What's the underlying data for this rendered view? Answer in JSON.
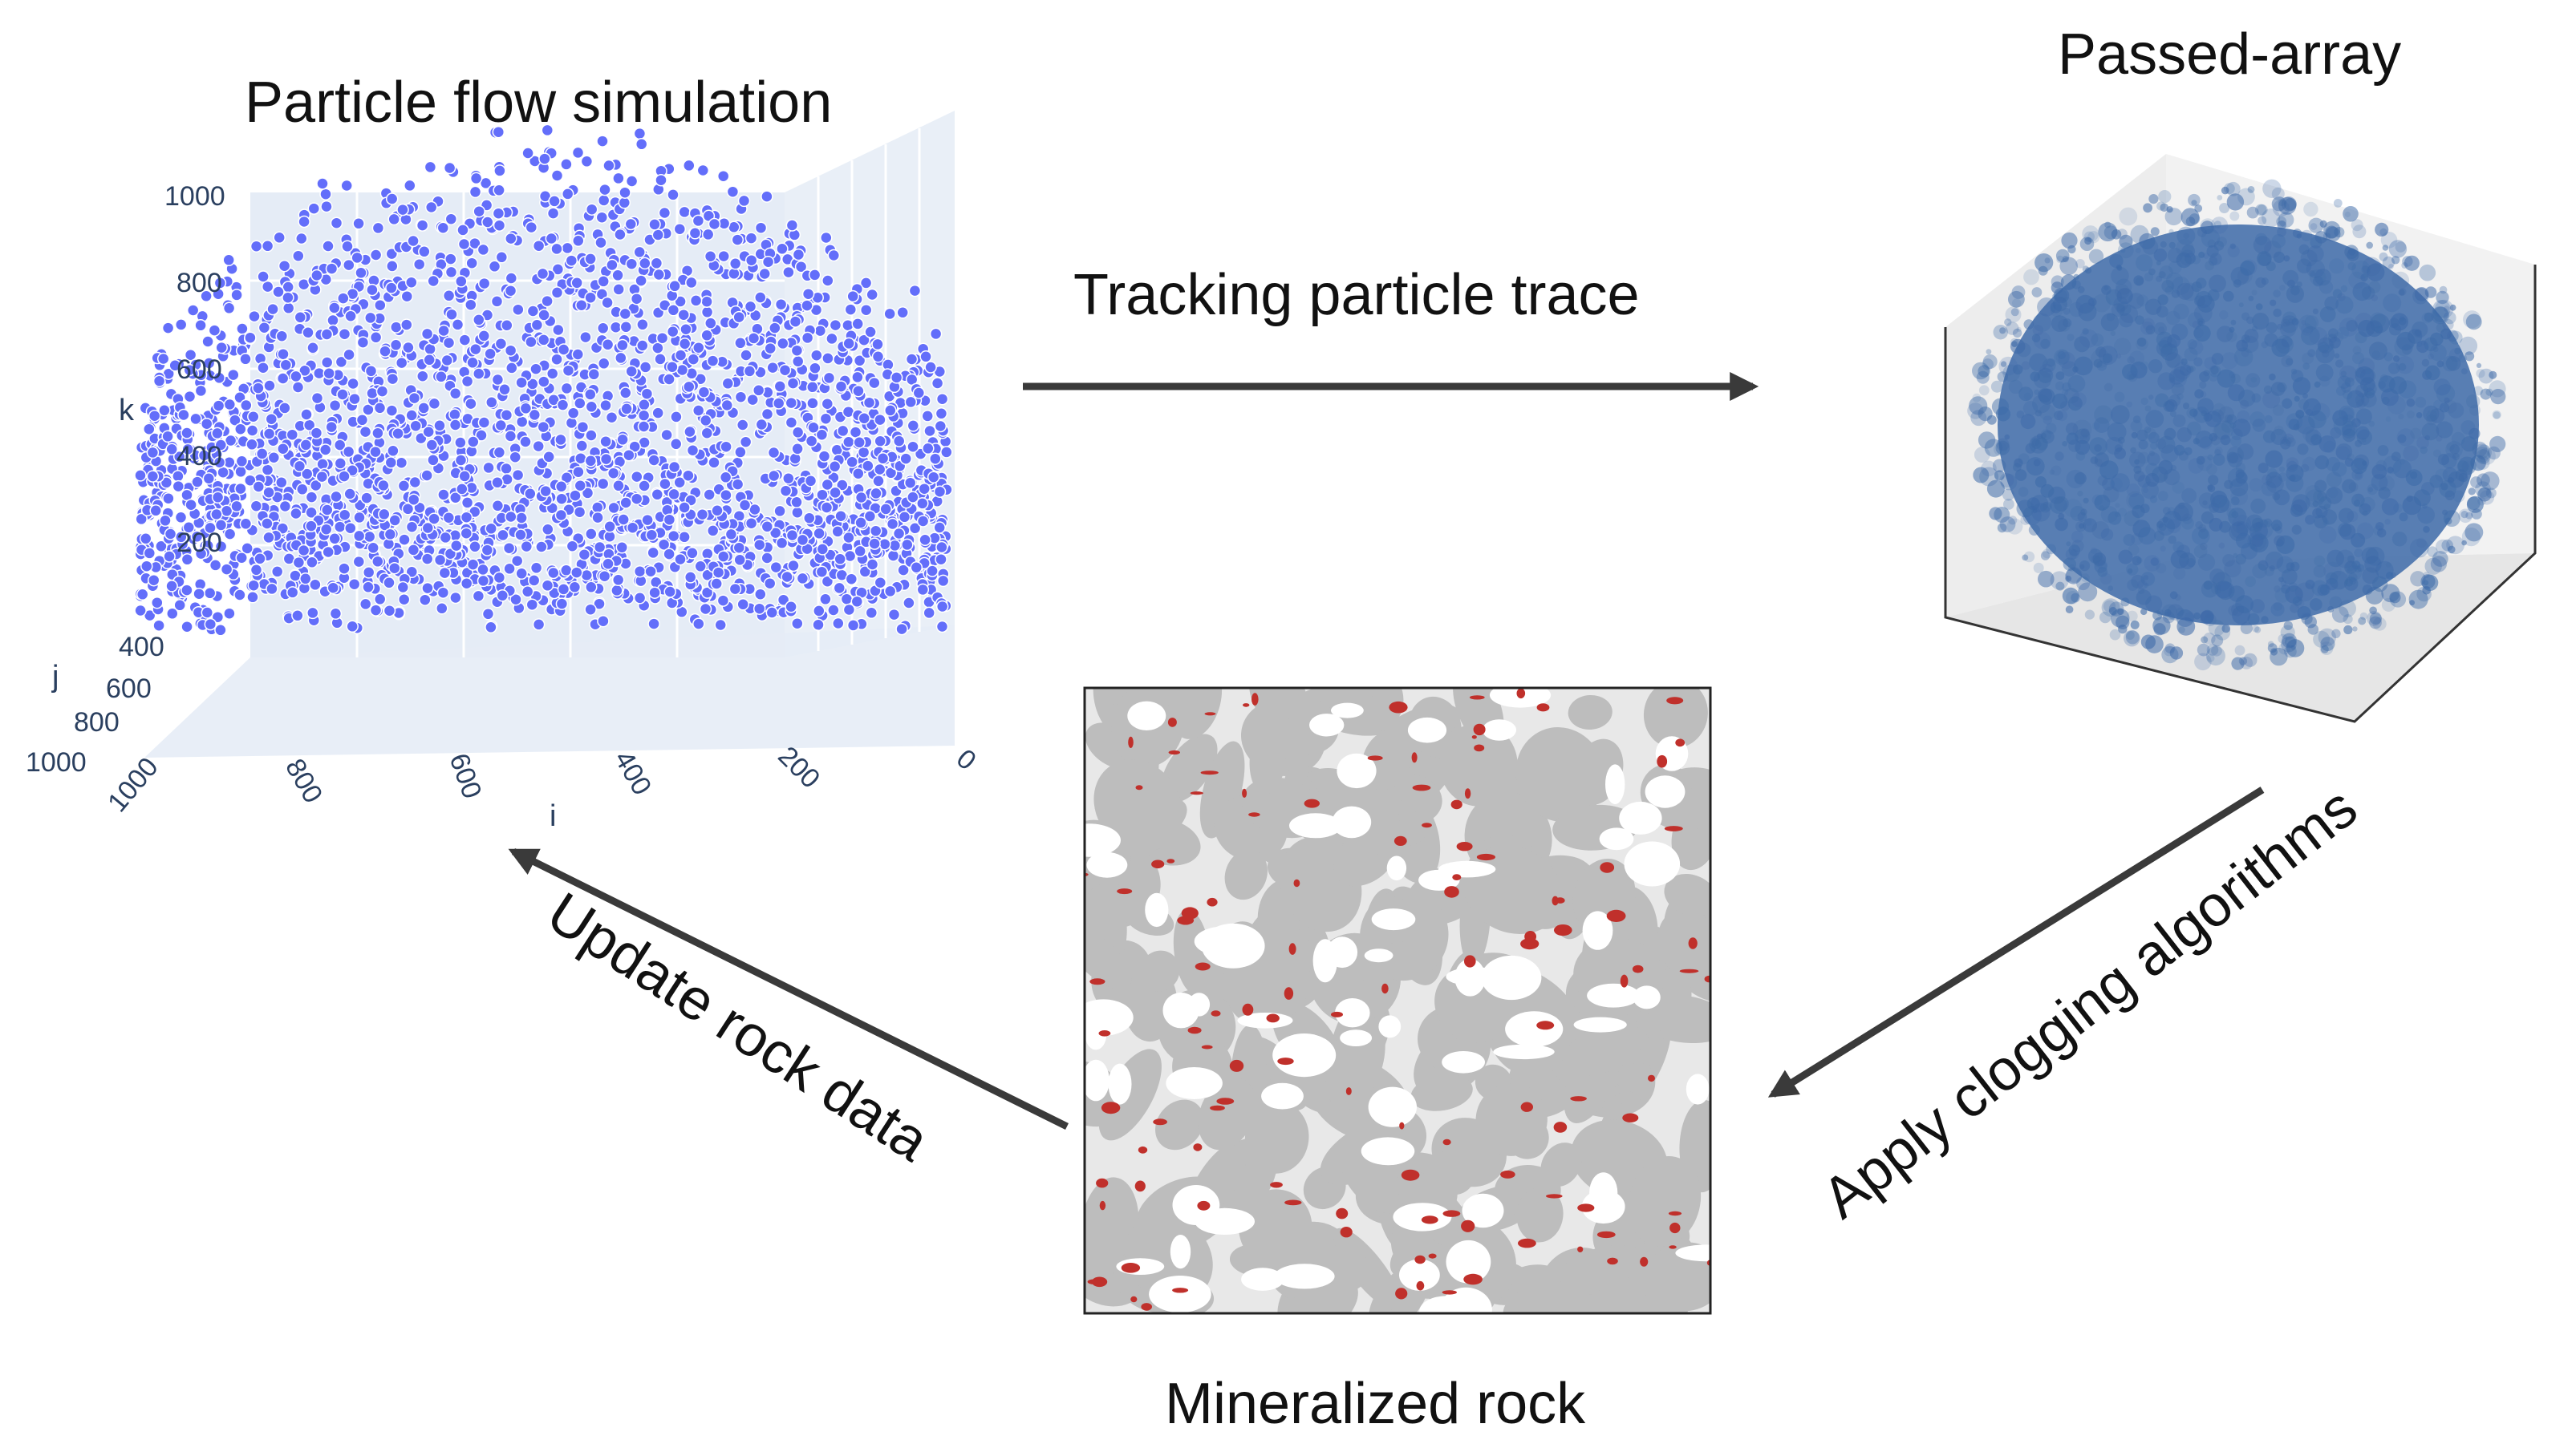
{
  "titles": {
    "scatter": "Particle flow simulation",
    "cube": "Passed-array",
    "rock": "Mineralized rock"
  },
  "arrows": {
    "top": "Tracking particle trace",
    "right": "Apply clogging algorithms",
    "left": "Update rock data"
  },
  "scatter_axes": {
    "k_label": "k",
    "j_label": "j",
    "i_label": "i",
    "k_ticks": [
      "1000",
      "800",
      "600",
      "400",
      "200"
    ],
    "j_ticks": [
      "400",
      "600",
      "800",
      "1000"
    ],
    "i_ticks": [
      "1000",
      "800",
      "600",
      "400",
      "200",
      "0"
    ]
  },
  "colors": {
    "scatter_panel": "#e5ecf6",
    "scatter_point": "#636efa",
    "cube_fill": "#3d6aa8",
    "rock_grain": "#bdbdbd",
    "rock_mineral": "#c0302b",
    "arrow": "#3a3a3a"
  }
}
